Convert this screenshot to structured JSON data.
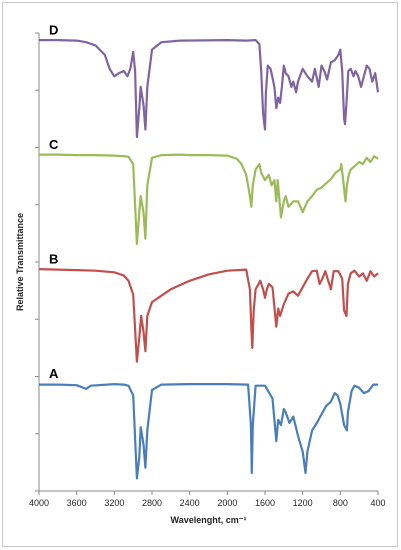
{
  "chart_data": {
    "type": "line",
    "title": "",
    "xlabel": "Wavelenght, cm⁻¹",
    "ylabel": "Relative Transmittance",
    "xlim": [
      4000,
      400
    ],
    "x_reversed": true,
    "x_ticks": [
      "4000",
      "3600",
      "3200",
      "2800",
      "2400",
      "2000",
      "1600",
      "1200",
      "800",
      "400"
    ],
    "grid": false,
    "legend": "none",
    "series": [
      {
        "name": "A",
        "color": "#4a7ebb",
        "points": [
          [
            4000,
            0.98
          ],
          [
            3800,
            0.98
          ],
          [
            3600,
            0.975
          ],
          [
            3500,
            0.94
          ],
          [
            3450,
            0.97
          ],
          [
            3200,
            0.985
          ],
          [
            3100,
            0.98
          ],
          [
            3050,
            0.97
          ],
          [
            3000,
            0.88
          ],
          [
            2960,
            0.1
          ],
          [
            2935,
            0.3
          ],
          [
            2920,
            0.58
          ],
          [
            2890,
            0.42
          ],
          [
            2870,
            0.2
          ],
          [
            2850,
            0.55
          ],
          [
            2800,
            0.93
          ],
          [
            2700,
            0.98
          ],
          [
            2400,
            0.985
          ],
          [
            2000,
            0.985
          ],
          [
            1780,
            0.98
          ],
          [
            1750,
            0.6
          ],
          [
            1740,
            0.15
          ],
          [
            1730,
            0.6
          ],
          [
            1700,
            0.97
          ],
          [
            1600,
            0.97
          ],
          [
            1520,
            0.85
          ],
          [
            1480,
            0.45
          ],
          [
            1460,
            0.65
          ],
          [
            1430,
            0.6
          ],
          [
            1400,
            0.75
          ],
          [
            1380,
            0.72
          ],
          [
            1340,
            0.62
          ],
          [
            1300,
            0.68
          ],
          [
            1250,
            0.5
          ],
          [
            1200,
            0.35
          ],
          [
            1170,
            0.15
          ],
          [
            1150,
            0.35
          ],
          [
            1100,
            0.55
          ],
          [
            1050,
            0.62
          ],
          [
            1000,
            0.7
          ],
          [
            950,
            0.78
          ],
          [
            900,
            0.82
          ],
          [
            860,
            0.9
          ],
          [
            830,
            0.88
          ],
          [
            800,
            0.8
          ],
          [
            760,
            0.6
          ],
          [
            730,
            0.55
          ],
          [
            720,
            0.72
          ],
          [
            680,
            0.92
          ],
          [
            650,
            0.97
          ],
          [
            600,
            0.95
          ],
          [
            550,
            0.9
          ],
          [
            500,
            0.92
          ],
          [
            450,
            0.98
          ],
          [
            400,
            0.98
          ]
        ]
      },
      {
        "name": "B",
        "color": "#c0504d",
        "points": [
          [
            4000,
            0.99
          ],
          [
            3800,
            0.985
          ],
          [
            3600,
            0.98
          ],
          [
            3400,
            0.975
          ],
          [
            3200,
            0.96
          ],
          [
            3100,
            0.93
          ],
          [
            3050,
            0.88
          ],
          [
            3000,
            0.75
          ],
          [
            2960,
            0.12
          ],
          [
            2935,
            0.35
          ],
          [
            2915,
            0.55
          ],
          [
            2890,
            0.4
          ],
          [
            2870,
            0.22
          ],
          [
            2850,
            0.55
          ],
          [
            2800,
            0.68
          ],
          [
            2700,
            0.74
          ],
          [
            2600,
            0.8
          ],
          [
            2400,
            0.88
          ],
          [
            2200,
            0.94
          ],
          [
            2000,
            0.975
          ],
          [
            1800,
            0.985
          ],
          [
            1760,
            0.8
          ],
          [
            1745,
            0.45
          ],
          [
            1735,
            0.25
          ],
          [
            1720,
            0.6
          ],
          [
            1700,
            0.8
          ],
          [
            1650,
            0.88
          ],
          [
            1620,
            0.8
          ],
          [
            1600,
            0.72
          ],
          [
            1580,
            0.8
          ],
          [
            1560,
            0.85
          ],
          [
            1520,
            0.82
          ],
          [
            1480,
            0.45
          ],
          [
            1460,
            0.62
          ],
          [
            1440,
            0.55
          ],
          [
            1400,
            0.66
          ],
          [
            1380,
            0.7
          ],
          [
            1350,
            0.76
          ],
          [
            1300,
            0.78
          ],
          [
            1250,
            0.74
          ],
          [
            1200,
            0.82
          ],
          [
            1150,
            0.9
          ],
          [
            1100,
            0.97
          ],
          [
            1050,
            0.975
          ],
          [
            1020,
            0.85
          ],
          [
            990,
            0.9
          ],
          [
            960,
            0.97
          ],
          [
            900,
            0.8
          ],
          [
            870,
            0.97
          ],
          [
            820,
            0.97
          ],
          [
            780,
            0.9
          ],
          [
            760,
            0.6
          ],
          [
            735,
            0.55
          ],
          [
            720,
            0.85
          ],
          [
            690,
            0.95
          ],
          [
            650,
            0.975
          ],
          [
            600,
            0.92
          ],
          [
            560,
            0.95
          ],
          [
            520,
            0.88
          ],
          [
            480,
            0.97
          ],
          [
            440,
            0.92
          ],
          [
            400,
            0.95
          ]
        ]
      },
      {
        "name": "C",
        "color": "#9bbb59",
        "points": [
          [
            4000,
            0.99
          ],
          [
            3800,
            0.99
          ],
          [
            3600,
            0.985
          ],
          [
            3400,
            0.985
          ],
          [
            3200,
            0.98
          ],
          [
            3100,
            0.975
          ],
          [
            3050,
            0.97
          ],
          [
            3000,
            0.9
          ],
          [
            2960,
            0.15
          ],
          [
            2935,
            0.45
          ],
          [
            2920,
            0.6
          ],
          [
            2890,
            0.45
          ],
          [
            2870,
            0.2
          ],
          [
            2850,
            0.7
          ],
          [
            2800,
            0.96
          ],
          [
            2700,
            0.985
          ],
          [
            2500,
            0.99
          ],
          [
            2400,
            0.985
          ],
          [
            2200,
            0.985
          ],
          [
            2000,
            0.98
          ],
          [
            1900,
            0.95
          ],
          [
            1850,
            0.9
          ],
          [
            1800,
            0.8
          ],
          [
            1760,
            0.6
          ],
          [
            1745,
            0.5
          ],
          [
            1730,
            0.7
          ],
          [
            1700,
            0.85
          ],
          [
            1660,
            0.9
          ],
          [
            1640,
            0.82
          ],
          [
            1600,
            0.75
          ],
          [
            1560,
            0.8
          ],
          [
            1530,
            0.7
          ],
          [
            1500,
            0.75
          ],
          [
            1480,
            0.55
          ],
          [
            1465,
            0.75
          ],
          [
            1450,
            0.6
          ],
          [
            1430,
            0.4
          ],
          [
            1400,
            0.55
          ],
          [
            1380,
            0.6
          ],
          [
            1350,
            0.5
          ],
          [
            1300,
            0.55
          ],
          [
            1250,
            0.55
          ],
          [
            1200,
            0.45
          ],
          [
            1150,
            0.55
          ],
          [
            1100,
            0.6
          ],
          [
            1050,
            0.66
          ],
          [
            1000,
            0.68
          ],
          [
            950,
            0.72
          ],
          [
            900,
            0.76
          ],
          [
            850,
            0.82
          ],
          [
            800,
            0.85
          ],
          [
            790,
            0.9
          ],
          [
            770,
            0.75
          ],
          [
            745,
            0.55
          ],
          [
            730,
            0.7
          ],
          [
            710,
            0.8
          ],
          [
            690,
            0.85
          ],
          [
            650,
            0.88
          ],
          [
            600,
            0.92
          ],
          [
            560,
            0.9
          ],
          [
            520,
            0.96
          ],
          [
            480,
            0.92
          ],
          [
            440,
            0.975
          ],
          [
            400,
            0.95
          ]
        ]
      },
      {
        "name": "D",
        "color": "#8064a2",
        "points": [
          [
            4000,
            0.99
          ],
          [
            3800,
            0.99
          ],
          [
            3600,
            0.985
          ],
          [
            3500,
            0.97
          ],
          [
            3400,
            0.94
          ],
          [
            3300,
            0.85
          ],
          [
            3250,
            0.72
          ],
          [
            3200,
            0.65
          ],
          [
            3150,
            0.68
          ],
          [
            3100,
            0.7
          ],
          [
            3060,
            0.65
          ],
          [
            3030,
            0.72
          ],
          [
            3000,
            0.88
          ],
          [
            2980,
            0.7
          ],
          [
            2960,
            0.08
          ],
          [
            2935,
            0.35
          ],
          [
            2920,
            0.55
          ],
          [
            2890,
            0.38
          ],
          [
            2870,
            0.15
          ],
          [
            2850,
            0.55
          ],
          [
            2800,
            0.9
          ],
          [
            2700,
            0.97
          ],
          [
            2500,
            0.985
          ],
          [
            2000,
            0.99
          ],
          [
            1800,
            0.985
          ],
          [
            1700,
            0.99
          ],
          [
            1660,
            0.95
          ],
          [
            1640,
            0.7
          ],
          [
            1620,
            0.3
          ],
          [
            1600,
            0.15
          ],
          [
            1590,
            0.5
          ],
          [
            1570,
            0.75
          ],
          [
            1540,
            0.72
          ],
          [
            1500,
            0.55
          ],
          [
            1480,
            0.35
          ],
          [
            1460,
            0.45
          ],
          [
            1440,
            0.4
          ],
          [
            1420,
            0.55
          ],
          [
            1400,
            0.75
          ],
          [
            1380,
            0.68
          ],
          [
            1350,
            0.65
          ],
          [
            1320,
            0.55
          ],
          [
            1300,
            0.6
          ],
          [
            1270,
            0.5
          ],
          [
            1250,
            0.6
          ],
          [
            1200,
            0.72
          ],
          [
            1150,
            0.65
          ],
          [
            1100,
            0.6
          ],
          [
            1070,
            0.72
          ],
          [
            1030,
            0.55
          ],
          [
            1000,
            0.75
          ],
          [
            970,
            0.7
          ],
          [
            940,
            0.62
          ],
          [
            900,
            0.78
          ],
          [
            860,
            0.8
          ],
          [
            820,
            0.85
          ],
          [
            800,
            0.9
          ],
          [
            780,
            0.7
          ],
          [
            760,
            0.25
          ],
          [
            750,
            0.2
          ],
          [
            735,
            0.4
          ],
          [
            715,
            0.7
          ],
          [
            690,
            0.72
          ],
          [
            660,
            0.65
          ],
          [
            640,
            0.7
          ],
          [
            610,
            0.65
          ],
          [
            580,
            0.55
          ],
          [
            550,
            0.65
          ],
          [
            520,
            0.75
          ],
          [
            490,
            0.72
          ],
          [
            460,
            0.6
          ],
          [
            430,
            0.68
          ],
          [
            400,
            0.5
          ]
        ]
      }
    ]
  }
}
